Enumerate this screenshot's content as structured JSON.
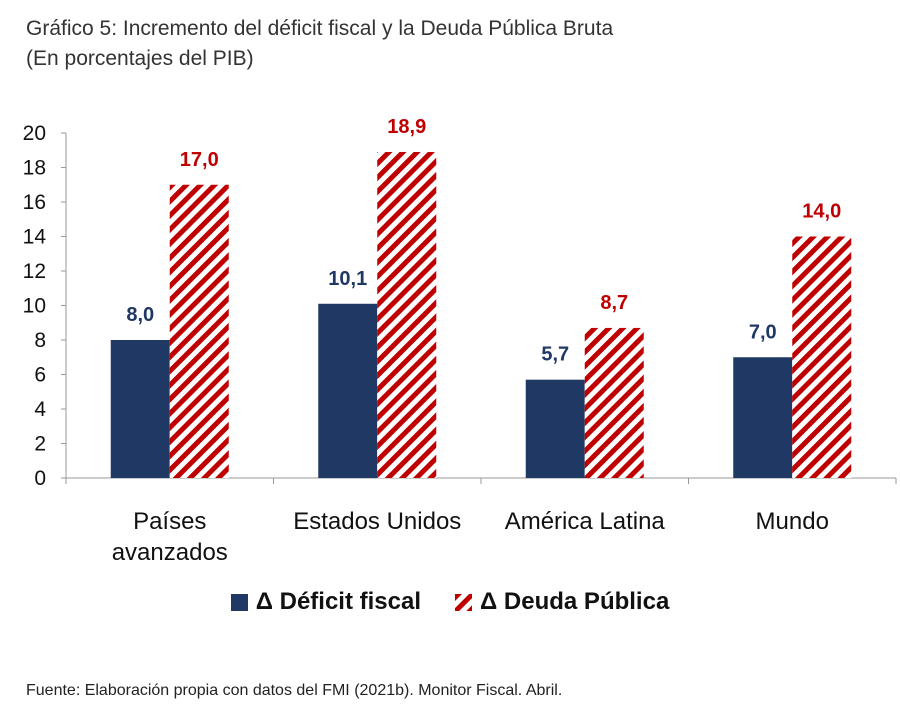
{
  "header": {
    "title": "Gráfico 5: Incremento del déficit fiscal y la Deuda Pública Bruta",
    "subtitle": "(En porcentajes del PIB)"
  },
  "footer": {
    "source": "Fuente: Elaboración propia con datos del FMI (2021b). Monitor Fiscal. Abril."
  },
  "legend": {
    "series_1": "Δ Déficit fiscal",
    "series_2": "Δ Deuda Pública"
  },
  "colors": {
    "deficit": "#1f3864",
    "deuda": "#c00000",
    "deficit_label": "#1f3864",
    "deuda_label": "#c00000"
  },
  "chart_data": {
    "type": "bar",
    "title": "Gráfico 5: Incremento del déficit fiscal y la Deuda Pública Bruta",
    "subtitle": "(En porcentajes del PIB)",
    "categories": [
      [
        "Países",
        "avanzados"
      ],
      [
        "Estados Unidos"
      ],
      [
        "América Latina"
      ],
      [
        "Mundo"
      ]
    ],
    "series": [
      {
        "name": "Δ Déficit fiscal",
        "values": [
          8.0,
          10.1,
          5.7,
          7.0
        ],
        "labels": [
          "8,0",
          "10,1",
          "5,7",
          "7,0"
        ]
      },
      {
        "name": "Δ Deuda Pública",
        "values": [
          17.0,
          18.9,
          8.7,
          14.0
        ],
        "labels": [
          "17,0",
          "18,9",
          "8,7",
          "14,0"
        ]
      }
    ],
    "ylim": [
      0,
      20
    ],
    "yticks": [
      0,
      2,
      4,
      6,
      8,
      10,
      12,
      14,
      16,
      18,
      20
    ],
    "xlabel": "",
    "ylabel": "",
    "grid": false,
    "legend_position": "bottom"
  }
}
